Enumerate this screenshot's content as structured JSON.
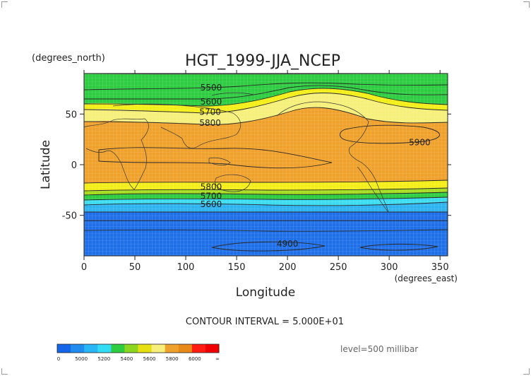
{
  "title": "HGT_1999-JJA_NCEP",
  "units": {
    "y": "(degrees_north)",
    "x": "(degrees_east)"
  },
  "axes": {
    "xlabel": "Longitude",
    "ylabel": "Latitude",
    "xticks": [
      "0",
      "50",
      "100",
      "150",
      "200",
      "250",
      "300",
      "350"
    ],
    "xtick_values": [
      0,
      50,
      100,
      150,
      200,
      250,
      300,
      350
    ],
    "yticks": [
      "50",
      "0",
      "-50"
    ],
    "ytick_values": [
      50,
      0,
      -50
    ],
    "xlim": [
      0,
      357.5
    ],
    "ylim": [
      -90,
      90
    ]
  },
  "contour_interval": "CONTOUR INTERVAL = 5.000E+01",
  "level": "level=500 millibar",
  "colorbar": {
    "labels": [
      "0",
      "5000",
      "5200",
      "5400",
      "5600",
      "5800",
      "6000",
      "∞"
    ],
    "colors": [
      "#1565e8",
      "#1f8df0",
      "#29b6f6",
      "#32dcf5",
      "#2ecc40",
      "#8cd620",
      "#e6e010",
      "#f6f07a",
      "#f0a12c",
      "#e88a18",
      "#ff1c10",
      "#f00000"
    ]
  },
  "band_colors": {
    "blue": "#1e6fe8",
    "lightblue": "#2db3f0",
    "cyan": "#3cdcf0",
    "green": "#2ecc40",
    "yellowgreen": "#a6dc1e",
    "yellow": "#f4ee18",
    "lightyellow": "#f6f07a",
    "orange": "#f0a12c"
  },
  "contour_labels": [
    {
      "text": "5500",
      "lon": 125,
      "lat": 76
    },
    {
      "text": "5600",
      "lon": 125,
      "lat": 62
    },
    {
      "text": "5700",
      "lon": 124,
      "lat": 52
    },
    {
      "text": "5800",
      "lon": 124,
      "lat": 41
    },
    {
      "text": "5900",
      "lon": 330,
      "lat": 22
    },
    {
      "text": "5800",
      "lon": 125,
      "lat": -22
    },
    {
      "text": "5700",
      "lon": 125,
      "lat": -31
    },
    {
      "text": "5600",
      "lon": 125,
      "lat": -39
    },
    {
      "text": "4900",
      "lon": 200,
      "lat": -78
    }
  ]
}
